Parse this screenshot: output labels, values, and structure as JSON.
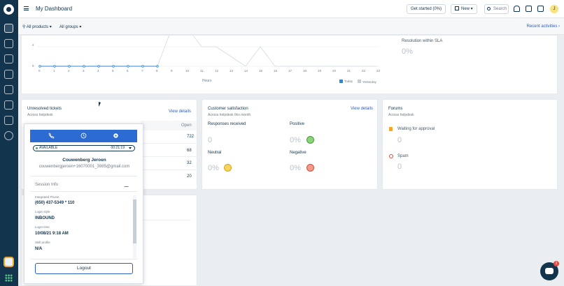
{
  "header": {
    "title": "My Dashboard",
    "get_started": "Get started (0%)",
    "new_label": "New",
    "search_placeholder": "Search",
    "avatar_initial": "J"
  },
  "filters": {
    "products": "All products",
    "groups": "All groups",
    "recent": "Recent activities"
  },
  "chart_data": {
    "type": "line",
    "x": [
      "0",
      "1",
      "2",
      "3",
      "4",
      "5",
      "6",
      "7",
      "8",
      "9",
      "10",
      "11",
      "12",
      "13",
      "14",
      "15",
      "16",
      "17",
      "18",
      "19",
      "20",
      "21",
      "22",
      "23"
    ],
    "xlabel": "Hours",
    "y_ticks": [
      "2",
      "0"
    ],
    "series": [
      {
        "name": "Today",
        "values": [
          0,
          0,
          0,
          0,
          0,
          0,
          0,
          0,
          0,
          null,
          null,
          null,
          null,
          null,
          null,
          null,
          null,
          null,
          null,
          null,
          null,
          null,
          null,
          null
        ]
      },
      {
        "name": "Yesterday",
        "values": [
          0,
          0,
          0,
          0,
          0,
          0,
          0,
          0,
          0,
          4,
          4,
          2,
          2,
          1,
          0,
          2,
          0,
          0,
          0,
          0,
          0,
          0,
          0,
          0
        ]
      }
    ]
  },
  "sla": {
    "label": "Resolution within SLA",
    "value": "0%"
  },
  "unresolved": {
    "title": "Unresolved tickets",
    "subtitle": "Across helpdesk",
    "link": "View details",
    "open_label": "Open",
    "counts": [
      "722",
      "68",
      "32",
      "20"
    ]
  },
  "csat": {
    "title": "Customer satisfaction",
    "subtitle": "Across helpdesk this month",
    "link": "View details",
    "responses_label": "Responses received",
    "responses_value": "0",
    "positive_label": "Positive",
    "positive_value": "0%",
    "neutral_label": "Neutral",
    "neutral_value": "0%",
    "negative_label": "Negative",
    "negative_value": "0%"
  },
  "forums": {
    "title": "Forums",
    "subtitle": "Across helpdesk",
    "waiting_label": "Waiting for approval",
    "waiting_value": "0",
    "spam_label": "Spam",
    "spam_value": "0"
  },
  "phone": {
    "status": "AVAILABLE",
    "timer": "00:21:19",
    "name": "Couwenberg Jeroen",
    "email": "couwenbergjeroen+16070001_3985@gmail.com",
    "session_label": "Session Info",
    "fields": [
      {
        "label": "Integrated Phone",
        "value": "(650) 437-5349 * 110"
      },
      {
        "label": "Login style",
        "value": "INBOUND"
      },
      {
        "label": "Login time",
        "value": "10/08/21 9:18 AM"
      },
      {
        "label": "Skill profile",
        "value": "N/A"
      }
    ],
    "logout": "Logout"
  },
  "chat_badge": "2",
  "colors": {
    "accent": "#2c5cc5",
    "rail": "#12344d",
    "phone_tab": "#2c6bd1"
  }
}
